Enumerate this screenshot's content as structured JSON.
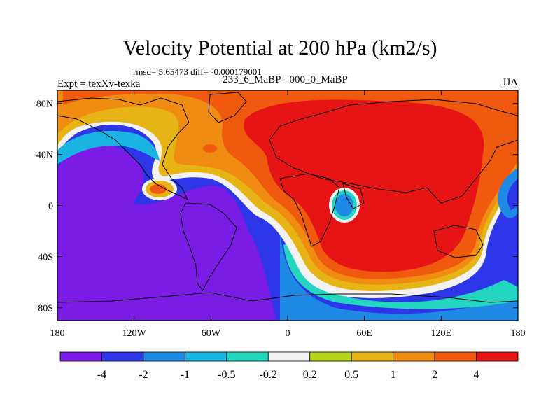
{
  "title": "Velocity Potential at 200 hPa (km2/s)",
  "stats": "rmsd= 5.65473 diff= -0.000179001",
  "left_label": "Expt = texXv-texka",
  "center_label": "233_6_MaBP - 000_0_MaBP",
  "right_label": "JJA",
  "lat_axis": [
    {
      "lat": 80,
      "label": "80N"
    },
    {
      "lat": 40,
      "label": "40N"
    },
    {
      "lat": 0,
      "label": "0"
    },
    {
      "lat": -40,
      "label": "40S"
    },
    {
      "lat": -80,
      "label": "80S"
    }
  ],
  "lon_axis": [
    {
      "lon": -180,
      "label": "180"
    },
    {
      "lon": -120,
      "label": "120W"
    },
    {
      "lon": -60,
      "label": "60W"
    },
    {
      "lon": 0,
      "label": "0"
    },
    {
      "lon": 60,
      "label": "60E"
    },
    {
      "lon": 120,
      "label": "120E"
    },
    {
      "lon": 180,
      "label": "180"
    }
  ],
  "colorbar": {
    "colors": [
      "#7b1be6",
      "#2d36e8",
      "#1e8ae6",
      "#1ab4e3",
      "#22d6c0",
      "#f2f2f2",
      "#b6d61e",
      "#e6b414",
      "#f08c12",
      "#f05a0e",
      "#e61414"
    ],
    "labels": [
      "-4",
      "-2",
      "-1",
      "-0.5",
      "-0.2",
      "0.2",
      "0.5",
      "1",
      "2",
      "4"
    ]
  },
  "colors": {
    "frame": "#000000",
    "ocean_base": "#2d36e8"
  }
}
